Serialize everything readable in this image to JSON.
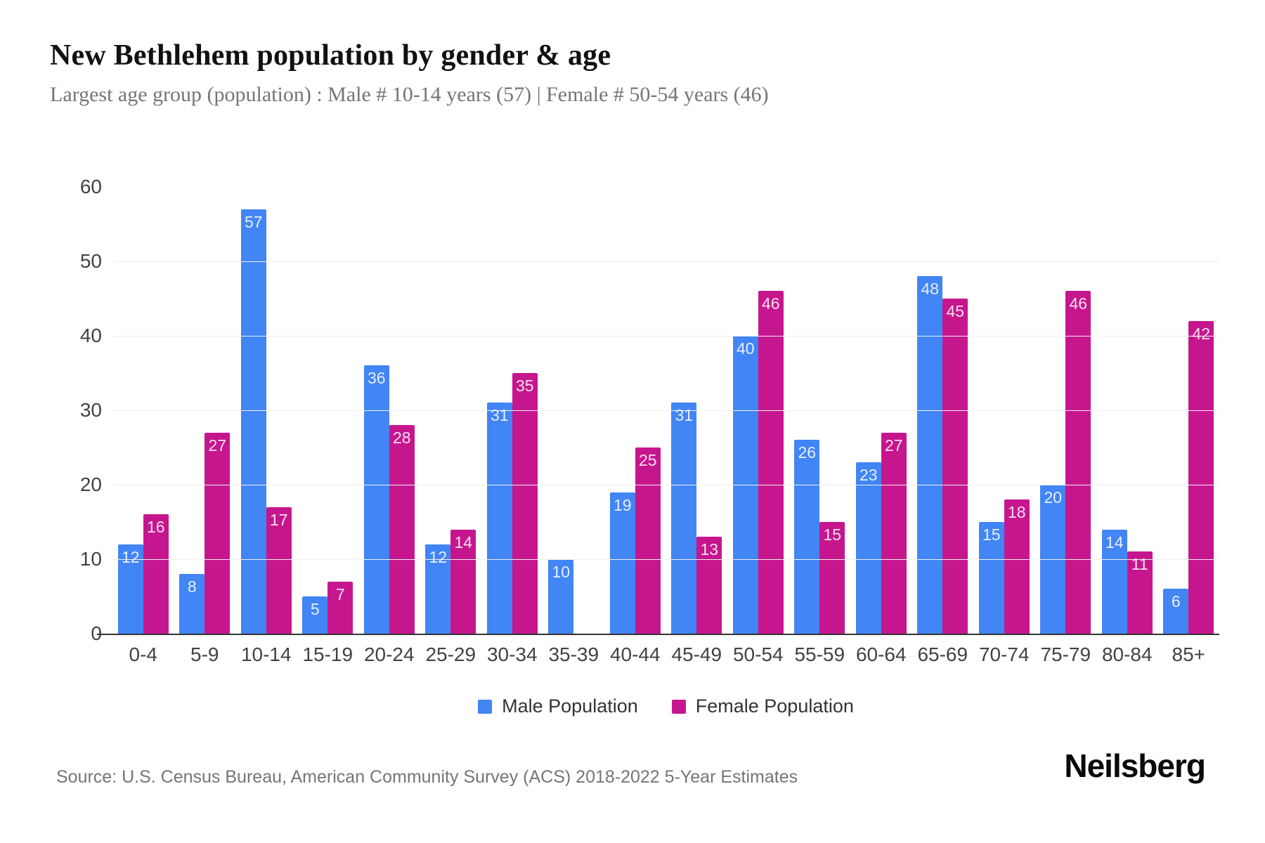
{
  "page": {
    "title": "New Bethlehem population by gender & age",
    "subtitle": "Largest age group (population) : Male # 10-14 years (57) | Female # 50-54 years (46)",
    "source": "Source: U.S. Census Bureau, American Community Survey (ACS) 2018-2022 5-Year Estimates",
    "brand": "Neilsberg"
  },
  "colors": {
    "male": "#4285F4",
    "female": "#C6168E",
    "grid": "#EFEFEF",
    "axis": "#333333",
    "tick_text": "#424242",
    "subtitle_text": "#757575"
  },
  "legend": [
    {
      "id": "male",
      "label": "Male Population",
      "color": "#4285F4"
    },
    {
      "id": "female",
      "label": "Female Population",
      "color": "#C6168E"
    }
  ],
  "chart_data": {
    "type": "bar",
    "title": "New Bethlehem population by gender & age",
    "xlabel": "",
    "ylabel": "",
    "categories": [
      "0-4",
      "5-9",
      "10-14",
      "15-19",
      "20-24",
      "25-29",
      "30-34",
      "35-39",
      "40-44",
      "45-49",
      "50-54",
      "55-59",
      "60-64",
      "65-69",
      "70-74",
      "75-79",
      "80-84",
      "85+"
    ],
    "series": [
      {
        "name": "Male Population",
        "color": "#4285F4",
        "values": [
          12,
          8,
          57,
          5,
          36,
          12,
          31,
          10,
          19,
          31,
          40,
          26,
          23,
          48,
          15,
          20,
          14,
          6
        ]
      },
      {
        "name": "Female Population",
        "color": "#C6168E",
        "values": [
          16,
          27,
          17,
          7,
          28,
          14,
          35,
          0,
          25,
          13,
          46,
          15,
          27,
          45,
          18,
          46,
          11,
          42
        ]
      }
    ],
    "ylim": [
      0,
      60
    ],
    "yticks": [
      0,
      10,
      20,
      30,
      40,
      50,
      60
    ],
    "grid": true,
    "value_labels": true,
    "legend_position": "bottom"
  }
}
